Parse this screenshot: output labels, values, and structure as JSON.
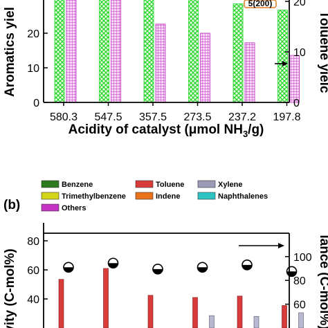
{
  "chart_data": [
    {
      "type": "bar",
      "panel": "a",
      "categories": [
        "580.3",
        "547.5",
        "357.5",
        "273.5",
        "237.2",
        "197.8"
      ],
      "xlabel": "Acidity of catalyst (μmol NH",
      "xlabel_sub": "3",
      "xlabel_tail": "/g)",
      "ylabel_left": "Aromatics yiel",
      "ylabel_right": "Toluene yielc",
      "left_axis": {
        "ylim": [
          0,
          30
        ],
        "ticks": [
          "0",
          "10",
          "20"
        ]
      },
      "right_axis": {
        "ylim": [
          0,
          20
        ],
        "ticks": [
          "0",
          "10",
          "20"
        ]
      },
      "series": [
        {
          "axis": "left",
          "fill": "crosshatch",
          "color": "#2ee82e",
          "values": [
            32,
            32,
            32,
            32,
            28.5,
            26.7
          ]
        },
        {
          "axis": "right",
          "fill": "grid",
          "color": "#cc33cc",
          "values": [
            22,
            22,
            15.5,
            13.7,
            11.8,
            9.3
          ]
        }
      ],
      "annotation": "5(200)",
      "arrow": "right"
    },
    {
      "type": "bar",
      "panel_label": "(b)",
      "legend": [
        {
          "name": "Benzene",
          "color": "#2b7a1c"
        },
        {
          "name": "Toluene",
          "color": "#d93a3a"
        },
        {
          "name": "Xylene",
          "color": "#9b9bb8"
        },
        {
          "name": "Trimethylbenzene",
          "color": "#d4d41a"
        },
        {
          "name": "Indene",
          "color": "#e8731a"
        },
        {
          "name": "Naphthalenes",
          "color": "#2ec4c4"
        },
        {
          "name": "Others",
          "color": "#c433c4"
        }
      ],
      "ylabel_left": "vity (C-mol%)",
      "ylabel_right": "lance (C-mol%)",
      "left_axis": {
        "ylim": [
          20,
          80
        ],
        "ticks": [
          "40",
          "60",
          "80"
        ]
      },
      "right_axis": {
        "ylim": [
          40,
          105
        ],
        "ticks": [
          "60",
          "80",
          "100"
        ]
      },
      "series": [
        {
          "name": "Toluene",
          "axis": "left",
          "values": [
            53.5,
            61,
            42.5,
            41,
            42,
            35.5
          ]
        },
        {
          "name": "Xylene",
          "axis": "left",
          "values": [
            null,
            null,
            null,
            28.5,
            28,
            30.5
          ]
        },
        {
          "name": "balance",
          "axis": "right",
          "type": "scatter",
          "values": [
            91,
            94.5,
            89.5,
            91,
            93,
            87.5
          ]
        }
      ],
      "arrow": "right"
    }
  ]
}
